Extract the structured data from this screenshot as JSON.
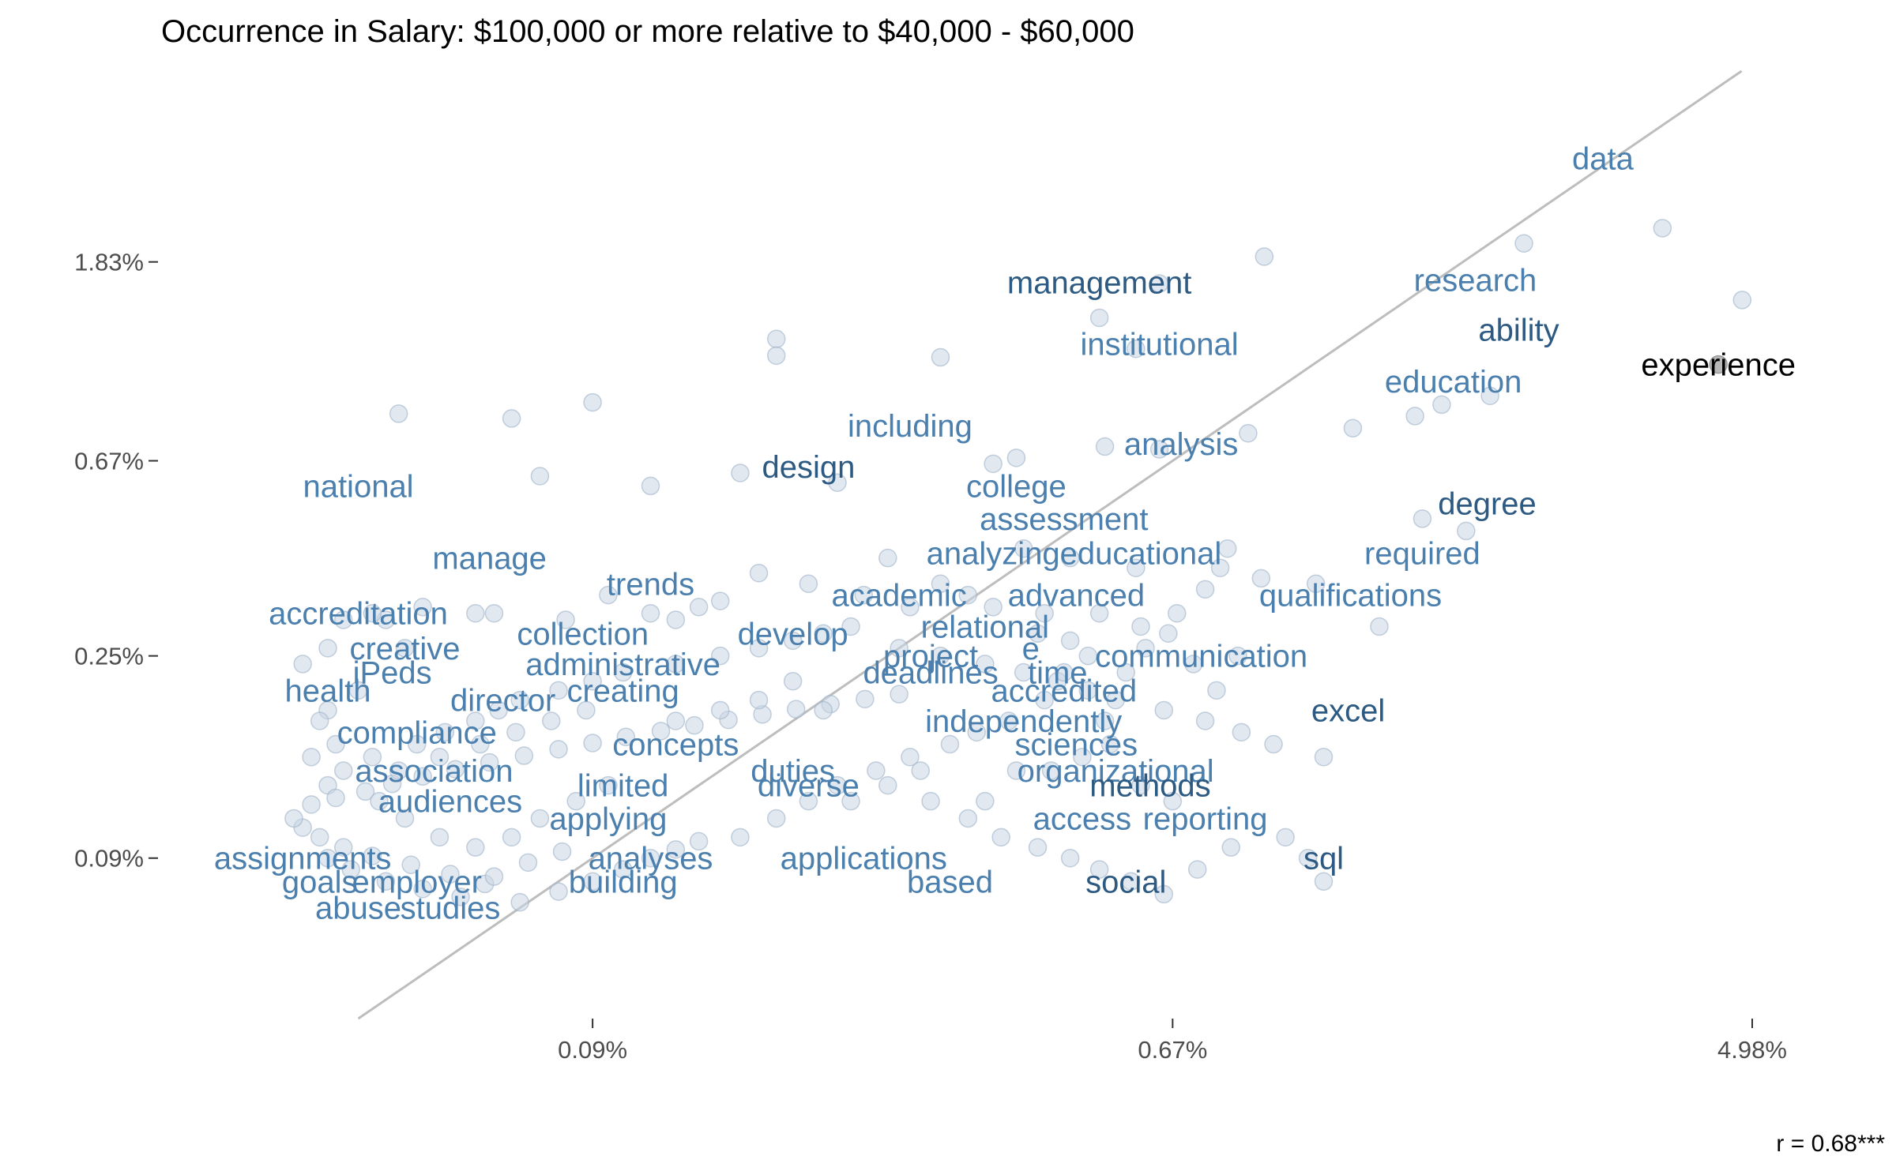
{
  "chart_data": {
    "type": "scatter",
    "title": "Occurrence in Salary: $100,000 or more relative to $40,000 - $60,000",
    "xlabel": "",
    "ylabel": "",
    "scale": "log",
    "xlim": [
      0.0002,
      0.059
    ],
    "ylim": [
      0.0004,
      0.048
    ],
    "x_ticks": [
      {
        "value": 0.0009,
        "label": "0.09%"
      },
      {
        "value": 0.0067,
        "label": "0.67%"
      },
      {
        "value": 0.0498,
        "label": "4.98%"
      }
    ],
    "y_ticks": [
      {
        "value": 0.0183,
        "label": "1.83%"
      },
      {
        "value": 0.0067,
        "label": "0.67%"
      },
      {
        "value": 0.0025,
        "label": "0.25%"
      },
      {
        "value": 0.0009,
        "label": "0.09%"
      }
    ],
    "grid": false,
    "annotation": "r =  0.68***",
    "colors": {
      "point_fill": "#c9d6e3",
      "point_stroke": "#9fb3c8",
      "reference_line": "#bdbdbd",
      "label_light": "#4a7fae",
      "label_dark": "#2c5a82",
      "label_black": "#000000",
      "highlight_point": "#b8b8b8"
    },
    "labeled_words": [
      {
        "word": "data",
        "x": 0.0297,
        "y": 0.0309,
        "color": "#4a7fae"
      },
      {
        "word": "management",
        "x": 0.0052,
        "y": 0.0165,
        "color": "#2c5a82"
      },
      {
        "word": "research",
        "x": 0.0191,
        "y": 0.0167,
        "color": "#4a7fae"
      },
      {
        "word": "ability",
        "x": 0.0222,
        "y": 0.013,
        "color": "#2c5a82"
      },
      {
        "word": "experience",
        "x": 0.0443,
        "y": 0.0109,
        "color": "#000000"
      },
      {
        "word": "institutional",
        "x": 0.0064,
        "y": 0.0121,
        "color": "#4a7fae"
      },
      {
        "word": "education",
        "x": 0.0177,
        "y": 0.01,
        "color": "#4a7fae"
      },
      {
        "word": "including",
        "x": 0.0027,
        "y": 0.008,
        "color": "#4a7fae"
      },
      {
        "word": "analysis",
        "x": 0.0069,
        "y": 0.0073,
        "color": "#4a7fae"
      },
      {
        "word": "design",
        "x": 0.0019,
        "y": 0.0065,
        "color": "#2c5a82"
      },
      {
        "word": "national",
        "x": 0.0004,
        "y": 0.0059,
        "color": "#4a7fae"
      },
      {
        "word": "college",
        "x": 0.0039,
        "y": 0.0059,
        "color": "#4a7fae"
      },
      {
        "word": "degree",
        "x": 0.0199,
        "y": 0.0054,
        "color": "#2c5a82"
      },
      {
        "word": "assessment",
        "x": 0.0046,
        "y": 0.005,
        "color": "#4a7fae"
      },
      {
        "word": "manage",
        "x": 0.00063,
        "y": 0.0041,
        "color": "#4a7fae"
      },
      {
        "word": "analyzing",
        "x": 0.0036,
        "y": 0.0042,
        "color": "#4a7fae"
      },
      {
        "word": "educational",
        "x": 0.006,
        "y": 0.0042,
        "color": "#4a7fae"
      },
      {
        "word": "required",
        "x": 0.0159,
        "y": 0.0042,
        "color": "#4a7fae"
      },
      {
        "word": "trends",
        "x": 0.0011,
        "y": 0.0036,
        "color": "#4a7fae"
      },
      {
        "word": "academic",
        "x": 0.0026,
        "y": 0.0034,
        "color": "#4a7fae"
      },
      {
        "word": "advanced",
        "x": 0.0048,
        "y": 0.0034,
        "color": "#4a7fae"
      },
      {
        "word": "qualifications",
        "x": 0.0124,
        "y": 0.0034,
        "color": "#4a7fae"
      },
      {
        "word": "accreditation",
        "x": 0.0004,
        "y": 0.0031,
        "color": "#4a7fae"
      },
      {
        "word": "relational",
        "x": 0.0035,
        "y": 0.0029,
        "color": "#4a7fae"
      },
      {
        "word": "collection",
        "x": 0.00087,
        "y": 0.0028,
        "color": "#4a7fae"
      },
      {
        "word": "develop",
        "x": 0.0018,
        "y": 0.0028,
        "color": "#4a7fae"
      },
      {
        "word": "e",
        "x": 0.0041,
        "y": 0.0026,
        "color": "#4a7fae"
      },
      {
        "word": "creative",
        "x": 0.00047,
        "y": 0.0026,
        "color": "#4a7fae"
      },
      {
        "word": "project",
        "x": 0.0029,
        "y": 0.0025,
        "color": "#4a7fae"
      },
      {
        "word": "communication",
        "x": 0.0074,
        "y": 0.0025,
        "color": "#4a7fae"
      },
      {
        "word": "administrative",
        "x": 0.001,
        "y": 0.0024,
        "color": "#4a7fae"
      },
      {
        "word": "iPeds",
        "x": 0.00045,
        "y": 0.0023,
        "color": "#4a7fae"
      },
      {
        "word": "time",
        "x": 0.0045,
        "y": 0.0023,
        "color": "#4a7fae"
      },
      {
        "word": "deadlines",
        "x": 0.0029,
        "y": 0.0023,
        "color": "#4a7fae"
      },
      {
        "word": "creating",
        "x": 0.001,
        "y": 0.0021,
        "color": "#4a7fae"
      },
      {
        "word": "health",
        "x": 0.00036,
        "y": 0.0021,
        "color": "#4a7fae"
      },
      {
        "word": "accredited",
        "x": 0.0046,
        "y": 0.0021,
        "color": "#4a7fae"
      },
      {
        "word": "director",
        "x": 0.00066,
        "y": 0.002,
        "color": "#4a7fae"
      },
      {
        "word": "excel",
        "x": 0.0123,
        "y": 0.0019,
        "color": "#2c5a82"
      },
      {
        "word": "independently",
        "x": 0.004,
        "y": 0.0018,
        "color": "#4a7fae"
      },
      {
        "word": "compliance",
        "x": 0.00049,
        "y": 0.0017,
        "color": "#4a7fae"
      },
      {
        "word": "concepts",
        "x": 0.0012,
        "y": 0.0016,
        "color": "#4a7fae"
      },
      {
        "word": "sciences",
        "x": 0.0048,
        "y": 0.0016,
        "color": "#4a7fae"
      },
      {
        "word": "duties",
        "x": 0.0018,
        "y": 0.0014,
        "color": "#4a7fae"
      },
      {
        "word": "organizational",
        "x": 0.0055,
        "y": 0.0014,
        "color": "#4a7fae"
      },
      {
        "word": "association",
        "x": 0.00052,
        "y": 0.0014,
        "color": "#4a7fae"
      },
      {
        "word": "limited",
        "x": 0.001,
        "y": 0.0013,
        "color": "#4a7fae"
      },
      {
        "word": "diverse",
        "x": 0.0019,
        "y": 0.0013,
        "color": "#4a7fae"
      },
      {
        "word": "methods",
        "x": 0.0062,
        "y": 0.0013,
        "color": "#2c5a82"
      },
      {
        "word": "audiences",
        "x": 0.00055,
        "y": 0.0012,
        "color": "#4a7fae"
      },
      {
        "word": "applying",
        "x": 0.00095,
        "y": 0.0011,
        "color": "#4a7fae"
      },
      {
        "word": "access",
        "x": 0.0049,
        "y": 0.0011,
        "color": "#4a7fae"
      },
      {
        "word": "reporting",
        "x": 0.0075,
        "y": 0.0011,
        "color": "#4a7fae"
      },
      {
        "word": "assignments",
        "x": 0.00033,
        "y": 0.0009,
        "color": "#4a7fae"
      },
      {
        "word": "applications",
        "x": 0.0023,
        "y": 0.0009,
        "color": "#4a7fae"
      },
      {
        "word": "sql",
        "x": 0.0113,
        "y": 0.0009,
        "color": "#2c5a82"
      },
      {
        "word": "analyses",
        "x": 0.0011,
        "y": 0.0009,
        "color": "#4a7fae"
      },
      {
        "word": "goals",
        "x": 0.00035,
        "y": 0.0008,
        "color": "#4a7fae"
      },
      {
        "word": "employer",
        "x": 0.00049,
        "y": 0.0008,
        "color": "#4a7fae"
      },
      {
        "word": "based",
        "x": 0.0031,
        "y": 0.0008,
        "color": "#4a7fae"
      },
      {
        "word": "social",
        "x": 0.0057,
        "y": 0.0008,
        "color": "#2c5a82"
      },
      {
        "word": "building",
        "x": 0.001,
        "y": 0.0008,
        "color": "#4a7fae"
      },
      {
        "word": "studies",
        "x": 0.00055,
        "y": 0.0007,
        "color": "#4a7fae"
      },
      {
        "word": "abuse",
        "x": 0.0004,
        "y": 0.0007,
        "color": "#4a7fae"
      }
    ],
    "points": [
      [
        0.0365,
        0.0217
      ],
      [
        0.0226,
        0.0201
      ],
      [
        0.0092,
        0.0188
      ],
      [
        0.0064,
        0.0164
      ],
      [
        0.0052,
        0.0138
      ],
      [
        0.0481,
        0.0151
      ],
      [
        0.0059,
        0.0118
      ],
      [
        0.0017,
        0.0124
      ],
      [
        0.0017,
        0.0114
      ],
      [
        0.003,
        0.0113
      ],
      [
        0.0201,
        0.0093
      ],
      [
        0.017,
        0.0089
      ],
      [
        0.0155,
        0.0084
      ],
      [
        0.0125,
        0.0079
      ],
      [
        0.0087,
        0.0077
      ],
      [
        0.0064,
        0.0071
      ],
      [
        0.0053,
        0.0072
      ],
      [
        0.0039,
        0.0068
      ],
      [
        0.0036,
        0.0066
      ],
      [
        0.0021,
        0.006
      ],
      [
        0.0015,
        0.0063
      ],
      [
        0.0011,
        0.0059
      ],
      [
        0.00075,
        0.0062
      ],
      [
        0.0009,
        0.009
      ],
      [
        0.00046,
        0.0085
      ],
      [
        0.00068,
        0.0083
      ],
      [
        0.0159,
        0.005
      ],
      [
        0.0185,
        0.0047
      ],
      [
        0.004,
        0.0043
      ],
      [
        0.0047,
        0.0041
      ],
      [
        0.0059,
        0.0039
      ],
      [
        0.0081,
        0.0043
      ],
      [
        0.0091,
        0.0037
      ],
      [
        0.0025,
        0.0041
      ],
      [
        0.0016,
        0.0038
      ],
      [
        0.003,
        0.0036
      ],
      [
        0.0033,
        0.0034
      ],
      [
        0.0036,
        0.0032
      ],
      [
        0.0043,
        0.0031
      ],
      [
        0.0052,
        0.0031
      ],
      [
        0.006,
        0.0029
      ],
      [
        0.0137,
        0.0029
      ],
      [
        0.011,
        0.0036
      ],
      [
        0.0014,
        0.0033
      ],
      [
        0.0012,
        0.003
      ],
      [
        0.0013,
        0.0032
      ],
      [
        0.0011,
        0.0031
      ],
      [
        0.00095,
        0.0034
      ],
      [
        0.00082,
        0.003
      ],
      [
        0.00064,
        0.0031
      ],
      [
        0.0006,
        0.0031
      ],
      [
        0.0005,
        0.0032
      ],
      [
        0.00044,
        0.003
      ],
      [
        0.00042,
        0.0031
      ],
      [
        0.00038,
        0.003
      ],
      [
        0.00047,
        0.0026
      ],
      [
        0.00036,
        0.0026
      ],
      [
        0.00033,
        0.0024
      ],
      [
        0.0004,
        0.0021
      ],
      [
        0.00036,
        0.0019
      ],
      [
        0.00035,
        0.0018
      ],
      [
        0.00037,
        0.0016
      ],
      [
        0.00034,
        0.0015
      ],
      [
        0.00038,
        0.0014
      ],
      [
        0.00036,
        0.0013
      ],
      [
        0.00042,
        0.0015
      ],
      [
        0.00049,
        0.0016
      ],
      [
        0.00054,
        0.0017
      ],
      [
        0.0006,
        0.0018
      ],
      [
        0.00065,
        0.0019
      ],
      [
        0.0007,
        0.002
      ],
      [
        0.0008,
        0.0021
      ],
      [
        0.0009,
        0.0022
      ],
      [
        0.001,
        0.0023
      ],
      [
        0.0012,
        0.0024
      ],
      [
        0.0014,
        0.0025
      ],
      [
        0.0016,
        0.0026
      ],
      [
        0.0018,
        0.0027
      ],
      [
        0.002,
        0.0028
      ],
      [
        0.0022,
        0.0029
      ],
      [
        0.0026,
        0.0026
      ],
      [
        0.003,
        0.0025
      ],
      [
        0.0035,
        0.0024
      ],
      [
        0.004,
        0.0023
      ],
      [
        0.0045,
        0.0022
      ],
      [
        0.005,
        0.0021
      ],
      [
        0.0055,
        0.002
      ],
      [
        0.0065,
        0.0019
      ],
      [
        0.0075,
        0.0018
      ],
      [
        0.0085,
        0.0017
      ],
      [
        0.0095,
        0.0016
      ],
      [
        0.0113,
        0.0015
      ],
      [
        0.0072,
        0.0024
      ],
      [
        0.0066,
        0.0028
      ],
      [
        0.0061,
        0.0026
      ],
      [
        0.0057,
        0.0023
      ],
      [
        0.0043,
        0.002
      ],
      [
        0.0038,
        0.0018
      ],
      [
        0.0034,
        0.0017
      ],
      [
        0.0031,
        0.0016
      ],
      [
        0.0027,
        0.0015
      ],
      [
        0.0024,
        0.0014
      ],
      [
        0.0021,
        0.0013
      ],
      [
        0.0019,
        0.0012
      ],
      [
        0.0017,
        0.0011
      ],
      [
        0.0015,
        0.001
      ],
      [
        0.0013,
        0.00098
      ],
      [
        0.0012,
        0.00094
      ],
      [
        0.0011,
        0.0009
      ],
      [
        0.001,
        0.00085
      ],
      [
        0.0009,
        0.0008
      ],
      [
        0.0008,
        0.00076
      ],
      [
        0.0007,
        0.00072
      ],
      [
        0.00062,
        0.00079
      ],
      [
        0.00055,
        0.00083
      ],
      [
        0.00048,
        0.00087
      ],
      [
        0.00042,
        0.00091
      ],
      [
        0.00038,
        0.00095
      ],
      [
        0.00035,
        0.001
      ],
      [
        0.00033,
        0.00105
      ],
      [
        0.00032,
        0.0011
      ],
      [
        0.00034,
        0.00118
      ],
      [
        0.00037,
        0.00122
      ],
      [
        0.00041,
        0.00126
      ],
      [
        0.00045,
        0.00131
      ],
      [
        0.0005,
        0.00136
      ],
      [
        0.00056,
        0.00141
      ],
      [
        0.00063,
        0.00146
      ],
      [
        0.00071,
        0.00151
      ],
      [
        0.0008,
        0.00156
      ],
      [
        0.0009,
        0.00161
      ],
      [
        0.00101,
        0.00166
      ],
      [
        0.00114,
        0.00171
      ],
      [
        0.00128,
        0.00176
      ],
      [
        0.00144,
        0.00181
      ],
      [
        0.00162,
        0.00186
      ],
      [
        0.00182,
        0.00191
      ],
      [
        0.00205,
        0.00196
      ],
      [
        0.00231,
        0.00201
      ],
      [
        0.0026,
        0.00206
      ],
      [
        0.0029,
        0.0012
      ],
      [
        0.0033,
        0.0011
      ],
      [
        0.0037,
        0.001
      ],
      [
        0.0042,
        0.00095
      ],
      [
        0.0047,
        0.0009
      ],
      [
        0.0052,
        0.00085
      ],
      [
        0.0058,
        0.0008
      ],
      [
        0.0065,
        0.00075
      ],
      [
        0.0073,
        0.00085
      ],
      [
        0.0082,
        0.00095
      ],
      [
        0.0099,
        0.001
      ],
      [
        0.0107,
        0.0009
      ],
      [
        0.0113,
        0.0008
      ],
      [
        0.0044,
        0.0014
      ],
      [
        0.0049,
        0.0015
      ],
      [
        0.0054,
        0.0016
      ],
      [
        0.006,
        0.0013
      ],
      [
        0.0067,
        0.0012
      ],
      [
        0.0035,
        0.0012
      ],
      [
        0.0039,
        0.0014
      ],
      [
        0.0028,
        0.0014
      ],
      [
        0.0025,
        0.0013
      ],
      [
        0.0022,
        0.0012
      ],
      [
        0.00095,
        0.0013
      ],
      [
        0.00085,
        0.0012
      ],
      [
        0.00075,
        0.0011
      ],
      [
        0.00068,
        0.001
      ],
      [
        0.0006,
        0.00095
      ],
      [
        0.00053,
        0.001
      ],
      [
        0.00047,
        0.0011
      ],
      [
        0.00043,
        0.0012
      ],
      [
        0.00036,
        0.0009
      ],
      [
        0.00039,
        0.00085
      ],
      [
        0.00044,
        0.0008
      ],
      [
        0.0005,
        0.00077
      ],
      [
        0.00057,
        0.00074
      ],
      [
        0.00064,
        0.00082
      ],
      [
        0.00072,
        0.00088
      ],
      [
        0.00081,
        0.00093
      ],
      [
        0.0012,
        0.0018
      ],
      [
        0.0014,
        0.0019
      ],
      [
        0.0016,
        0.002
      ],
      [
        0.0018,
        0.0022
      ],
      [
        0.002,
        0.0019
      ],
      [
        0.00088,
        0.0019
      ],
      [
        0.00078,
        0.0018
      ],
      [
        0.00069,
        0.0017
      ],
      [
        0.00061,
        0.0016
      ],
      [
        0.00053,
        0.0015
      ],
      [
        0.00046,
        0.0014
      ],
      [
        0.0027,
        0.0032
      ],
      [
        0.0023,
        0.0034
      ],
      [
        0.0019,
        0.0036
      ],
      [
        0.0042,
        0.0028
      ],
      [
        0.0047,
        0.0027
      ],
      [
        0.005,
        0.0025
      ],
      [
        0.0046,
        0.0023
      ],
      [
        0.0053,
        0.0018
      ],
      [
        0.0078,
        0.0021
      ],
      [
        0.0084,
        0.0025
      ],
      [
        0.0068,
        0.0031
      ],
      [
        0.0075,
        0.0035
      ],
      [
        0.0079,
        0.0039
      ]
    ]
  }
}
